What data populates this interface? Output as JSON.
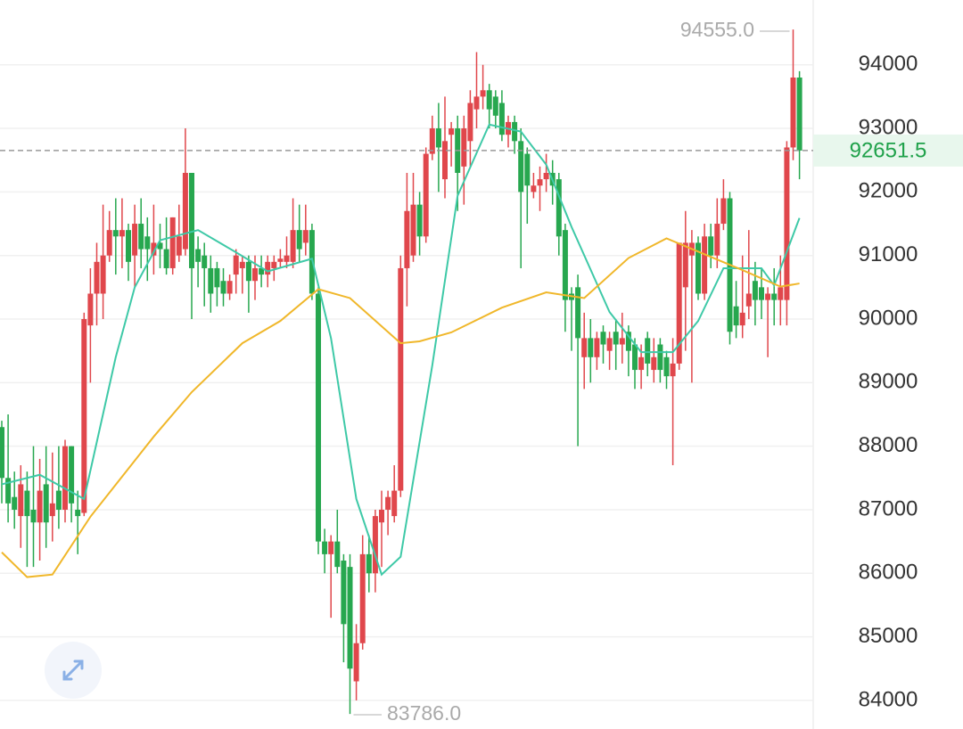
{
  "chart_data": {
    "type": "candlestick",
    "up_color": "#e0474c",
    "down_color": "#27a74f",
    "ylim": [
      83550,
      95020
    ],
    "yticks": [
      84000,
      85000,
      86000,
      87000,
      88000,
      89000,
      90000,
      91000,
      92000,
      93000,
      94000
    ],
    "grid": true,
    "open": [
      88300,
      87500,
      87200,
      86900,
      87300,
      87000,
      86800,
      87400,
      86900,
      87300,
      87000,
      88000,
      87000,
      86950,
      89900,
      90400,
      90400,
      91000,
      91400,
      91300,
      91400,
      91000,
      91500,
      91300,
      91000,
      91200,
      91100,
      90800,
      91000,
      91100,
      92300,
      91100,
      91000,
      90800,
      90800,
      90600,
      90400,
      90700,
      90800,
      90900,
      90600,
      90800,
      90700,
      90800,
      90900,
      90900,
      90900,
      91400,
      91200,
      91400,
      90400,
      86500,
      86300,
      86500,
      86200,
      86100,
      84300,
      84900,
      86300,
      86000,
      86800,
      87000,
      86900,
      87300,
      90800,
      91000,
      91800,
      91300,
      92600,
      93000,
      92200,
      92900,
      93000,
      92400,
      92800,
      93300,
      93500,
      93600,
      93500,
      93400,
      92900,
      93100,
      92800,
      92600,
      92000,
      92100,
      92200,
      92300,
      92200,
      91400,
      90400,
      90500,
      89400,
      89700,
      89400,
      89800,
      89500,
      89800,
      89600,
      89800,
      89600,
      89200,
      89700,
      89200,
      89600,
      89400,
      89100,
      89300,
      90500,
      91000,
      91200,
      90400,
      91300,
      91000,
      91500,
      91900,
      90200,
      89900,
      90200,
      90600,
      90500,
      90300,
      90400,
      90300,
      90300,
      92700,
      93800
    ],
    "high": [
      88400,
      88500,
      87600,
      87700,
      87600,
      88000,
      87800,
      88000,
      87900,
      88000,
      88100,
      88000,
      87300,
      90100,
      90800,
      91200,
      91800,
      91700,
      91900,
      91900,
      91500,
      91800,
      91900,
      91600,
      91800,
      91500,
      91600,
      91600,
      91800,
      93000,
      92300,
      91300,
      91200,
      91000,
      90900,
      90800,
      90700,
      91100,
      91000,
      91000,
      91000,
      91000,
      91000,
      91000,
      91100,
      91300,
      91900,
      91800,
      91800,
      91500,
      90500,
      86700,
      86600,
      87000,
      86300,
      86300,
      85200,
      86600,
      86600,
      87000,
      87300,
      87300,
      87700,
      91000,
      92300,
      92300,
      92000,
      92700,
      93200,
      93400,
      93500,
      93100,
      93200,
      93200,
      93600,
      94200,
      94000,
      93700,
      93600,
      93600,
      93200,
      93200,
      93000,
      92700,
      92300,
      92400,
      92600,
      92500,
      92300,
      91500,
      90500,
      90700,
      90100,
      90000,
      89800,
      89900,
      89800,
      90000,
      90100,
      89900,
      89700,
      89600,
      89800,
      89700,
      89700,
      89500,
      89700,
      91200,
      91700,
      91400,
      91300,
      91500,
      91500,
      91900,
      92200,
      92000,
      90600,
      91000,
      91400,
      90900,
      90800,
      90500,
      90800,
      91000,
      92800,
      94555,
      93900
    ],
    "low": [
      87100,
      86800,
      86700,
      86400,
      86100,
      86100,
      86200,
      86400,
      86500,
      86700,
      86800,
      86800,
      86300,
      86900,
      89000,
      89900,
      90000,
      90900,
      90700,
      90800,
      90600,
      90500,
      90800,
      90600,
      90700,
      90800,
      90700,
      90700,
      90900,
      91000,
      90000,
      90500,
      90200,
      90100,
      90200,
      90200,
      90300,
      90400,
      90400,
      90100,
      90300,
      90500,
      90500,
      90600,
      90800,
      90800,
      90800,
      90900,
      91000,
      90300,
      86300,
      86000,
      85300,
      86000,
      84600,
      83786,
      84000,
      84800,
      85700,
      85700,
      86100,
      86600,
      86800,
      87200,
      90200,
      90900,
      91000,
      91200,
      92500,
      92000,
      91900,
      92400,
      91700,
      91800,
      92400,
      93000,
      93300,
      93000,
      93000,
      92800,
      92700,
      92600,
      90800,
      91500,
      91900,
      91700,
      92000,
      91800,
      91000,
      89800,
      89500,
      88000,
      88900,
      89000,
      89200,
      89300,
      89200,
      89200,
      89300,
      89100,
      88900,
      88900,
      89100,
      89000,
      89000,
      88900,
      87700,
      89200,
      89500,
      89000,
      90300,
      90300,
      90800,
      90800,
      91400,
      89600,
      89700,
      89700,
      90000,
      89900,
      90000,
      89400,
      89900,
      89900,
      89900,
      92500,
      92200
    ],
    "close": [
      87500,
      87100,
      87000,
      87400,
      86900,
      86800,
      87300,
      86800,
      87100,
      87000,
      88000,
      87100,
      86900,
      90000,
      90400,
      90900,
      91000,
      91400,
      91300,
      91400,
      90900,
      91500,
      91100,
      91100,
      91200,
      91100,
      90800,
      91600,
      91300,
      92300,
      90800,
      90900,
      90800,
      90400,
      90500,
      90400,
      90600,
      91000,
      90900,
      90600,
      90800,
      90700,
      90900,
      90900,
      90950,
      91000,
      91400,
      91100,
      91400,
      90400,
      86500,
      86300,
      86500,
      86100,
      85200,
      84500,
      84900,
      86300,
      86000,
      86900,
      87000,
      87200,
      87300,
      90800,
      91700,
      91800,
      91300,
      92600,
      93000,
      92700,
      92800,
      93000,
      92300,
      93000,
      93400,
      93500,
      93600,
      93300,
      93200,
      92900,
      93100,
      92800,
      92000,
      92100,
      92100,
      92200,
      92300,
      92100,
      91300,
      90300,
      90300,
      89700,
      89700,
      89400,
      89700,
      89600,
      89700,
      89600,
      89700,
      89500,
      89200,
      89400,
      89300,
      89400,
      89200,
      89100,
      89300,
      91200,
      91200,
      91200,
      90400,
      91300,
      91000,
      91500,
      91900,
      89800,
      89900,
      90100,
      90400,
      90300,
      90300,
      90400,
      90300,
      90500,
      92700,
      93800,
      92651.5
    ],
    "ma_lines": [
      {
        "color": "#3ec9a7",
        "x": [
          0,
          6,
          13,
          18,
          21,
          25,
          31,
          37,
          42,
          49,
          52,
          56,
          60,
          63,
          68,
          72,
          77,
          82,
          86,
          90,
          96,
          101,
          106,
          110,
          114,
          120,
          122,
          126
        ],
        "values": [
          87400,
          87550,
          87170,
          89400,
          90500,
          91240,
          91400,
          91050,
          90750,
          90950,
          89700,
          87170,
          85980,
          86260,
          89270,
          91940,
          93060,
          92950,
          92430,
          91450,
          90110,
          89480,
          89480,
          89970,
          90800,
          90800,
          90530,
          91590
        ]
      },
      {
        "color": "#f0b72a",
        "x": [
          0,
          4,
          8,
          14,
          24,
          30,
          38,
          44,
          50,
          55,
          63,
          66,
          71,
          79,
          86,
          92,
          99,
          105,
          111,
          117,
          123,
          126
        ],
        "values": [
          86330,
          85940,
          85980,
          86890,
          88150,
          88850,
          89620,
          89970,
          90470,
          90330,
          89620,
          89650,
          89790,
          90180,
          90420,
          90330,
          90960,
          91270,
          91020,
          90770,
          90510,
          90560
        ]
      }
    ],
    "high_label": {
      "value": 94555.0,
      "label": "94555.0"
    },
    "low_label": {
      "value": 83786.0,
      "label": "83786.0"
    },
    "last_price": 92651.5
  }
}
